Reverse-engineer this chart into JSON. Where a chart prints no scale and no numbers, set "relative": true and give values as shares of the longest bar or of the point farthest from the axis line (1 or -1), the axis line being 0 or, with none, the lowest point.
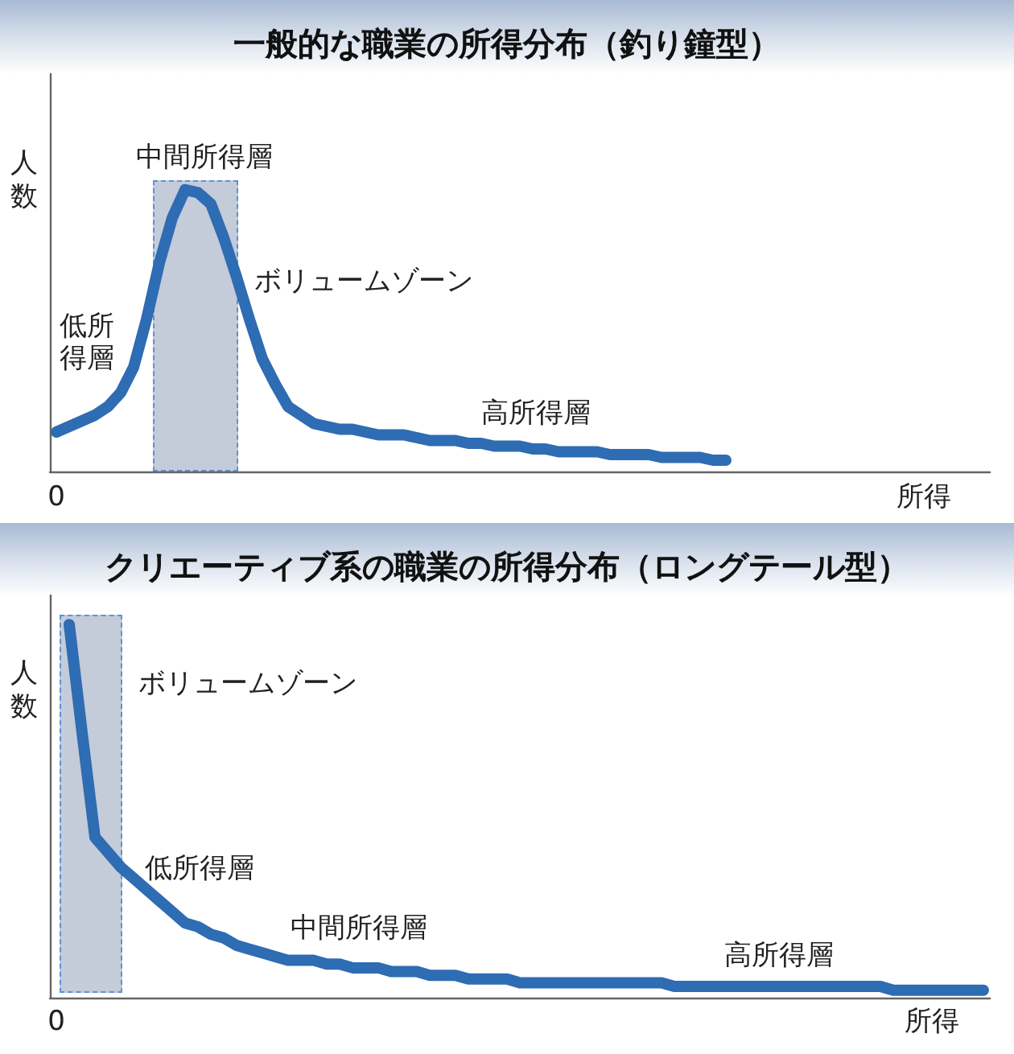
{
  "chart_data": [
    {
      "type": "line",
      "title": "一般的な職業の所得分布（釣り鐘型）",
      "xlabel": "所得",
      "ylabel": "人数",
      "relative": true,
      "categories": [
        null,
        null,
        null,
        null,
        null,
        null,
        null,
        null,
        null,
        null,
        null,
        null,
        null,
        null,
        null,
        null,
        null,
        null,
        null,
        null,
        null,
        null,
        null,
        null,
        null,
        null,
        null,
        null,
        null,
        null,
        null,
        null,
        null,
        null,
        null,
        null,
        null,
        null,
        null,
        null,
        null,
        null,
        null,
        null,
        null,
        null,
        null,
        null,
        null,
        null,
        null,
        null,
        null,
        null,
        null,
        null,
        null,
        null,
        null,
        null,
        null,
        null,
        null,
        null,
        null,
        null,
        null,
        null,
        null,
        null,
        null,
        null,
        null
      ],
      "color": "#2e6cb3",
      "values": [
        0.14,
        0.16,
        0.18,
        0.2,
        0.23,
        0.28,
        0.37,
        0.54,
        0.74,
        0.9,
        1,
        0.99,
        0.95,
        0.83,
        0.69,
        0.54,
        0.4,
        0.31,
        0.23,
        0.2,
        0.17,
        0.16,
        0.15,
        0.15,
        0.14,
        0.13,
        0.13,
        0.13,
        0.12,
        0.11,
        0.11,
        0.11,
        0.1,
        0.1,
        0.09,
        0.09,
        0.09,
        0.08,
        0.08,
        0.07,
        0.07,
        0.07,
        0.07,
        0.06,
        0.06,
        0.06,
        0.06,
        0.05,
        0.05,
        0.05,
        0.05,
        0.04,
        0.04,
        null,
        null,
        null,
        null,
        null,
        null,
        null,
        null,
        null,
        null,
        null,
        null,
        null,
        null,
        null,
        null,
        null,
        null,
        null,
        null
      ],
      "annotations": [
        "中間所得層",
        "ボリュームゾーン",
        "低所得層",
        "高所得層",
        "0"
      ]
    },
    {
      "type": "line",
      "title": "クリエーティブ系の職業の所得分布（ロングテール型）",
      "xlabel": "所得",
      "ylabel": "人数",
      "relative": true,
      "categories": [
        null,
        null,
        null,
        null,
        null,
        null,
        null,
        null,
        null,
        null,
        null,
        null,
        null,
        null,
        null,
        null,
        null,
        null,
        null,
        null,
        null,
        null,
        null,
        null,
        null,
        null,
        null,
        null,
        null,
        null,
        null,
        null,
        null,
        null,
        null,
        null,
        null,
        null,
        null,
        null,
        null,
        null,
        null,
        null,
        null,
        null,
        null,
        null,
        null,
        null,
        null,
        null,
        null,
        null,
        null,
        null,
        null,
        null,
        null,
        null,
        null,
        null,
        null,
        null,
        null,
        null,
        null,
        null,
        null,
        null,
        null,
        null,
        null
      ],
      "color": "#2e6cb3",
      "values": [
        null,
        1,
        0.71,
        0.43,
        0.39,
        0.35,
        0.32,
        0.29,
        0.26,
        0.23,
        0.2,
        0.19,
        0.17,
        0.16,
        0.14,
        0.13,
        0.12,
        0.11,
        0.1,
        0.1,
        0.1,
        0.09,
        0.09,
        0.08,
        0.08,
        0.08,
        0.07,
        0.07,
        0.07,
        0.06,
        0.06,
        0.06,
        0.05,
        0.05,
        0.05,
        0.05,
        0.04,
        0.04,
        0.04,
        0.04,
        0.04,
        0.04,
        0.04,
        0.04,
        0.04,
        0.04,
        0.04,
        0.04,
        0.03,
        0.03,
        0.03,
        0.03,
        0.03,
        0.03,
        0.03,
        0.03,
        0.03,
        0.03,
        0.03,
        0.03,
        0.03,
        0.03,
        0.03,
        0.03,
        0.03,
        0.02,
        0.02,
        0.02,
        0.02,
        0.02,
        0.02,
        0.02,
        0.02
      ],
      "annotations": [
        "ボリュームゾーン",
        "低所得層",
        "中間所得層",
        "高所得層",
        "0"
      ]
    }
  ]
}
